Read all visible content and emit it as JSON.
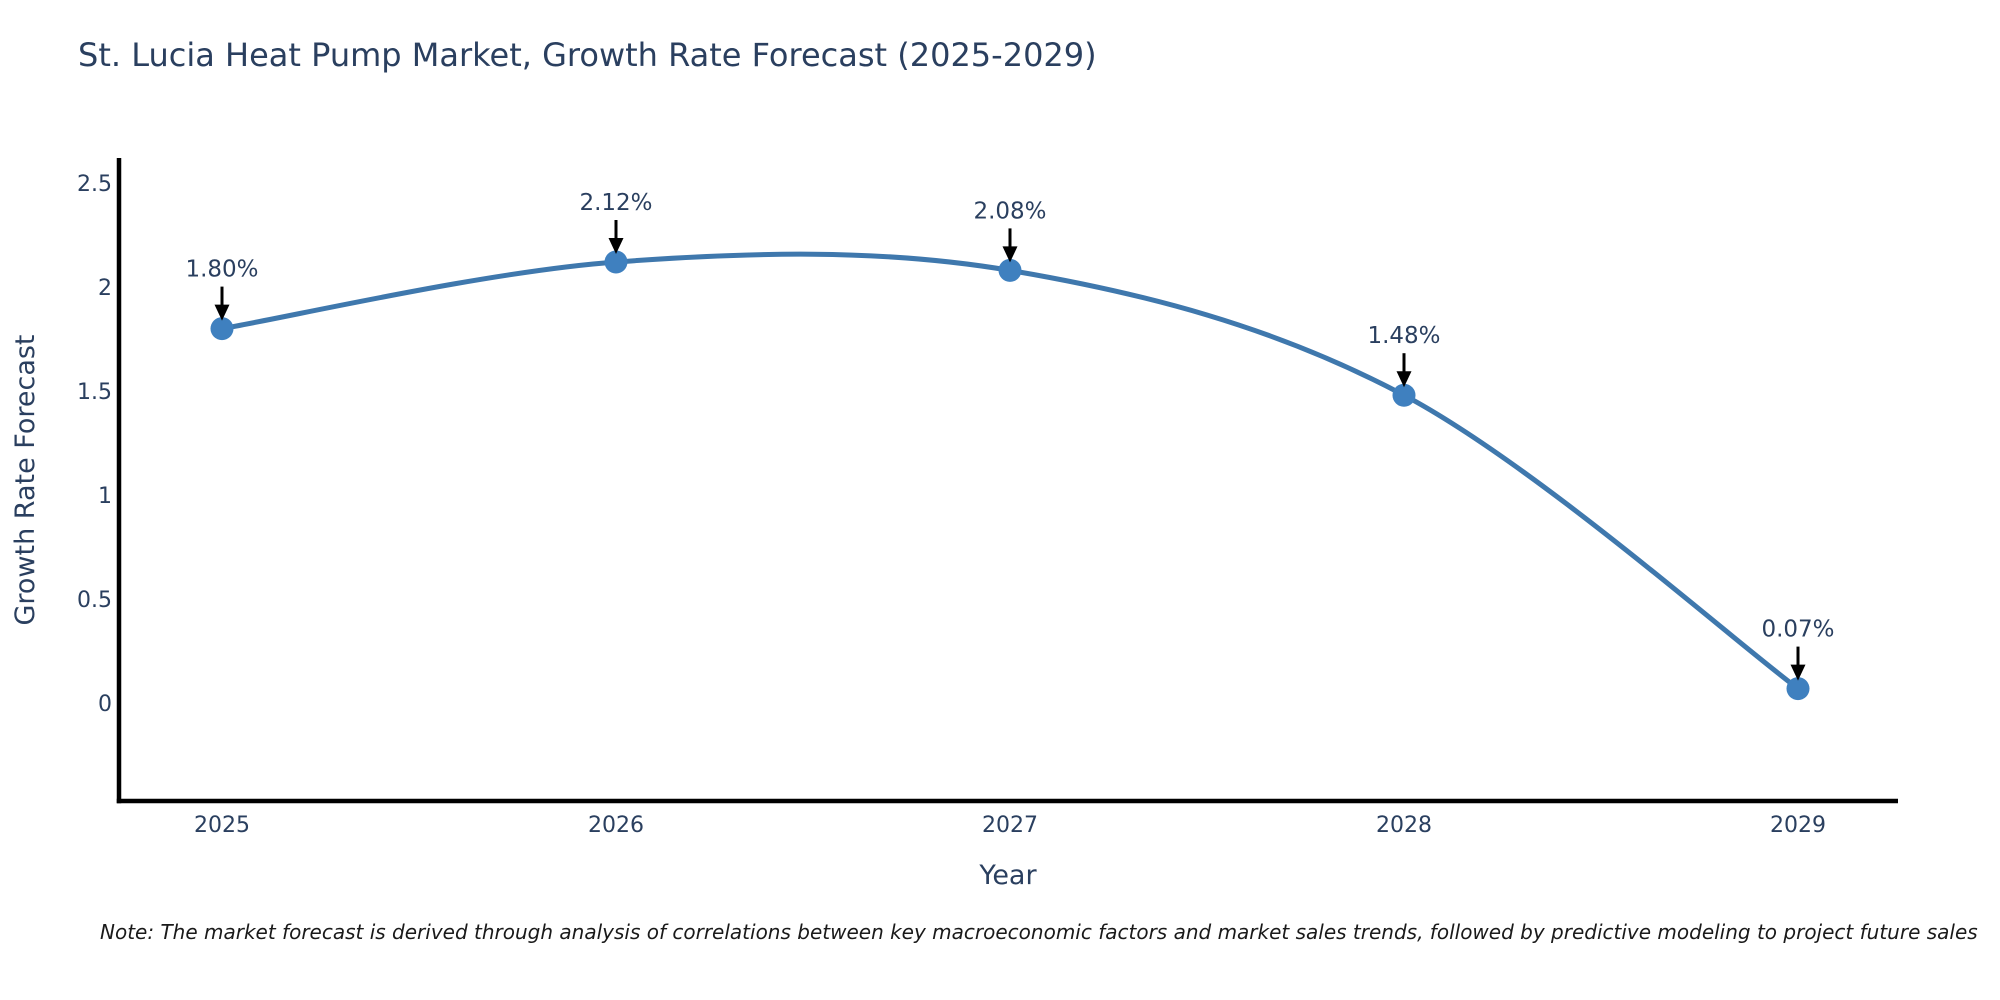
{
  "note": "Note: The market forecast is derived through analysis of correlations between key macroeconomic factors and market sales trends, followed by predictive modeling to project future sales",
  "chart_data": {
    "type": "line",
    "title": "St. Lucia Heat Pump Market, Growth Rate Forecast (2025-2029)",
    "xlabel": "Year",
    "ylabel": "Growth Rate Forecast",
    "x": [
      "2025",
      "2026",
      "2027",
      "2028",
      "2029"
    ],
    "values": [
      1.8,
      2.12,
      2.08,
      1.48,
      0.07
    ],
    "point_labels": [
      "1.80%",
      "2.12%",
      "2.08%",
      "1.48%",
      "0.07%"
    ],
    "ytick_labels": [
      "0",
      "0.5",
      "1",
      "1.5",
      "2",
      "2.5"
    ],
    "ytick_values": [
      0,
      0.5,
      1,
      1.5,
      2,
      2.5
    ],
    "ylim": [
      -0.47,
      2.62
    ],
    "line_shape": "spline",
    "markers": true,
    "grid": false,
    "legend": false,
    "colors": {
      "line": "#3f78ad",
      "marker": "#3f80bf",
      "axis": "#000000",
      "text": "#2a3f5f",
      "arrow": "#000000"
    }
  }
}
